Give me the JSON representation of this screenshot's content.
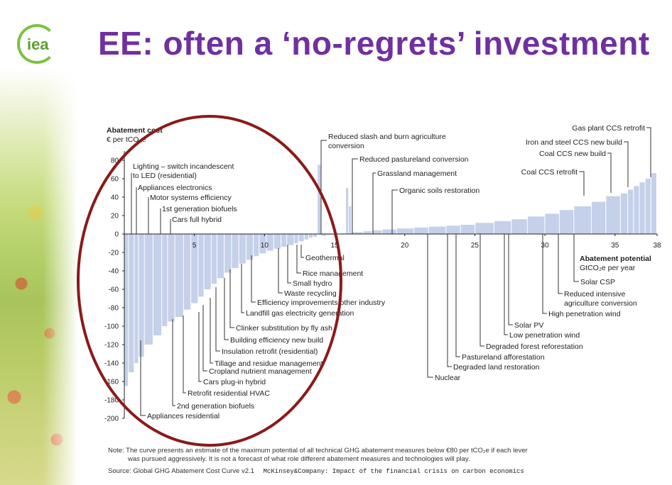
{
  "slide": {
    "title": "EE: often a ‘no-regrets’ investment",
    "logo_text": "iea",
    "note_line1": "Note: The curve presents an estimate of the maximum potential of all technical GHG abatement measures below €80 per tCO₂e if each lever",
    "note_line2": "was pursued aggressively. It is not a forecast of what role different abatement measures and technologies will play.",
    "source": "Source: Global GHG Abatement Cost Curve v2.1",
    "source_mck": "McKinsey&Company: Impact of the financial crisis on carbon economics"
  },
  "colors": {
    "title": "#7030a0",
    "bar": "#c5d0ea",
    "circle": "#8b1a1a",
    "logo": "#7cc242"
  },
  "chart_data": {
    "type": "bar",
    "ylabel": "Abatement cost",
    "yunit": "€ per tCO₂e",
    "xlabel": "Abatement potential",
    "xunit": "GtCO₂e per year",
    "xlim": [
      0,
      38
    ],
    "ylim": [
      -200,
      90
    ],
    "xticks": [
      5,
      10,
      15,
      20,
      25,
      30,
      35,
      38
    ],
    "yticks": [
      80,
      60,
      40,
      20,
      0,
      -20,
      -40,
      -60,
      -80,
      -100,
      -120,
      -140,
      -160,
      -180,
      -200
    ],
    "bars": [
      {
        "w": 0.3,
        "v": -165
      },
      {
        "w": 0.4,
        "v": -150
      },
      {
        "w": 0.3,
        "v": -140
      },
      {
        "w": 0.4,
        "v": -133
      },
      {
        "w": 0.6,
        "v": -120
      },
      {
        "w": 0.6,
        "v": -110
      },
      {
        "w": 0.4,
        "v": -100
      },
      {
        "w": 0.5,
        "v": -95
      },
      {
        "w": 0.6,
        "v": -90
      },
      {
        "w": 0.5,
        "v": -82
      },
      {
        "w": 0.5,
        "v": -75
      },
      {
        "w": 0.4,
        "v": -68
      },
      {
        "w": 0.5,
        "v": -60
      },
      {
        "w": 0.4,
        "v": -54
      },
      {
        "w": 0.5,
        "v": -48
      },
      {
        "w": 0.5,
        "v": -42
      },
      {
        "w": 0.5,
        "v": -37
      },
      {
        "w": 0.5,
        "v": -32
      },
      {
        "w": 0.5,
        "v": -28
      },
      {
        "w": 0.4,
        "v": -24
      },
      {
        "w": 0.5,
        "v": -21
      },
      {
        "w": 0.5,
        "v": -18
      },
      {
        "w": 0.5,
        "v": -16
      },
      {
        "w": 0.4,
        "v": -14
      },
      {
        "w": 0.5,
        "v": -12
      },
      {
        "w": 0.3,
        "v": -10
      },
      {
        "w": 0.4,
        "v": -8
      },
      {
        "w": 0.3,
        "v": -6
      },
      {
        "w": 0.3,
        "v": -4
      },
      {
        "w": 0.3,
        "v": -3
      },
      {
        "w": 0.25,
        "v": 75
      },
      {
        "w": 0.4,
        "v": -2
      },
      {
        "w": 0.6,
        "v": -1
      },
      {
        "w": 0.7,
        "v": 0.5
      },
      {
        "w": 0.2,
        "v": 50
      },
      {
        "w": 0.2,
        "v": 30
      },
      {
        "w": 0.8,
        "v": 2
      },
      {
        "w": 0.6,
        "v": 3
      },
      {
        "w": 0.7,
        "v": 4
      },
      {
        "w": 1.0,
        "v": 5
      },
      {
        "w": 1.2,
        "v": 6
      },
      {
        "w": 1.0,
        "v": 7
      },
      {
        "w": 1.2,
        "v": 8
      },
      {
        "w": 1.0,
        "v": 9
      },
      {
        "w": 1.0,
        "v": 10
      },
      {
        "w": 1.3,
        "v": 12
      },
      {
        "w": 1.2,
        "v": 14
      },
      {
        "w": 1.1,
        "v": 16
      },
      {
        "w": 1.2,
        "v": 19
      },
      {
        "w": 1.0,
        "v": 22
      },
      {
        "w": 1.0,
        "v": 26
      },
      {
        "w": 1.2,
        "v": 30
      },
      {
        "w": 1.0,
        "v": 35
      },
      {
        "w": 1.0,
        "v": 41
      },
      {
        "w": 0.5,
        "v": 44
      },
      {
        "w": 0.4,
        "v": 48
      },
      {
        "w": 0.4,
        "v": 52
      },
      {
        "w": 0.4,
        "v": 56
      },
      {
        "w": 0.4,
        "v": 60
      },
      {
        "w": 0.4,
        "v": 66
      }
    ],
    "labels_negative": [
      "Lighting – switch incandescent",
      "to LED (residential)",
      "Appliances electronics",
      "Motor systems efficiency",
      "1st generation biofuels",
      "Cars full hybrid",
      "Geothermal",
      "Rice management",
      "Small hydro",
      "Waste recycling",
      "Efficiency improvements other industry",
      "Landfill gas electricity generation",
      "Clinker substitution by fly ash",
      "Building efficiency new build",
      "Insulation retrofit (residential)",
      "Tillage and residue management",
      "Cropland nutrient management",
      "Cars plug-in hybrid",
      "Retrofit residential HVAC",
      "2nd generation biofuels",
      "Appliances residential"
    ],
    "labels_positive": [
      "Reduced slash and burn agriculture",
      "conversion",
      "Reduced pastureland conversion",
      "Grassland management",
      "Organic soils restoration",
      "Gas plant CCS retrofit",
      "Iron and steel CCS new build",
      "Coal CCS new build",
      "Coal CCS retrofit",
      "Solar CSP",
      "Reduced intensive",
      "agriculture conversion",
      "High penetration wind",
      "Solar PV",
      "Low penetration wind",
      "Degraded forest reforestation",
      "Pastureland afforestation",
      "Degraded land restoration",
      "Nuclear"
    ]
  }
}
